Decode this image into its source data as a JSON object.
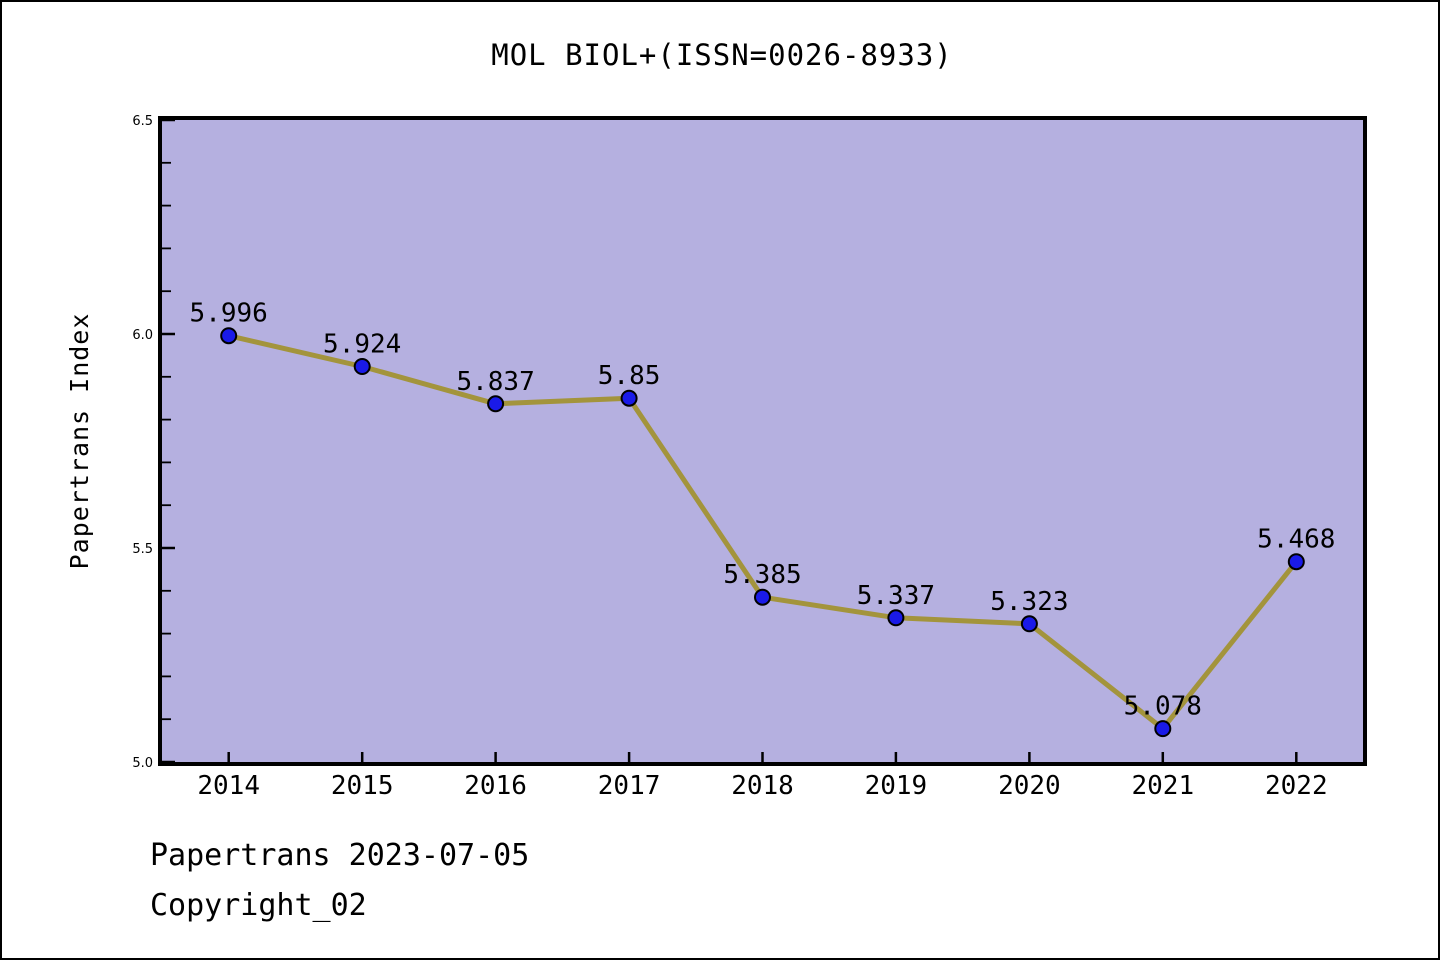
{
  "title": "MOL BIOL+(ISSN=0026-8933)",
  "footer": {
    "line1": "Papertrans 2023-07-05",
    "line2": "Copyright_02"
  },
  "chart_data": {
    "type": "line",
    "title": "MOL BIOL+(ISSN=0026-8933)",
    "categories": [
      "2014",
      "2015",
      "2016",
      "2017",
      "2018",
      "2019",
      "2020",
      "2021",
      "2022"
    ],
    "values": [
      5.996,
      5.924,
      5.837,
      5.85,
      5.385,
      5.337,
      5.323,
      5.078,
      5.468
    ],
    "point_labels": [
      "5.996",
      "5.924",
      "5.837",
      "5.85",
      "5.385",
      "5.337",
      "5.323",
      "5.078",
      "5.468"
    ],
    "xlabel": "",
    "ylabel": "Papertrans Index",
    "ylim": [
      5.0,
      6.5
    ],
    "y_major_ticks": [
      5.0,
      5.5,
      6.0,
      6.5
    ],
    "y_major_tick_labels": [
      "5.0",
      "5.5",
      "6.0",
      "6.5"
    ],
    "y_minor_step": 0.1,
    "grid": false,
    "legend": "none",
    "colors": {
      "plot_background": "#b5b0e0",
      "line": "#a3943c",
      "marker_fill": "#1a1ae8",
      "marker_edge": "#000000",
      "axis": "#000000",
      "text": "#000000",
      "figure_background": "#ffffff"
    }
  }
}
